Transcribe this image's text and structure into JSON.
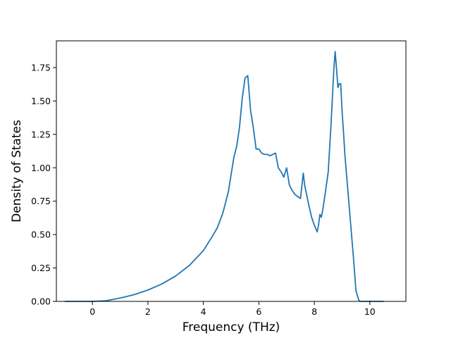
{
  "chart_data": {
    "type": "line",
    "title": "",
    "xlabel": "Frequency (THz)",
    "ylabel": "Density of States",
    "xlim": [
      -1.3,
      11.3
    ],
    "ylim": [
      0.0,
      1.95
    ],
    "xticks": [
      0,
      2,
      4,
      6,
      8,
      10
    ],
    "xtick_labels": [
      "0",
      "2",
      "4",
      "6",
      "8",
      "10"
    ],
    "yticks": [
      0.0,
      0.25,
      0.5,
      0.75,
      1.0,
      1.25,
      1.5,
      1.75
    ],
    "ytick_labels": [
      "0.00",
      "0.25",
      "0.50",
      "0.75",
      "1.00",
      "1.25",
      "1.50",
      "1.75"
    ],
    "grid": false,
    "legend": "none",
    "series": [
      {
        "color": "#1f77b4",
        "x": [
          -1.0,
          0.0,
          0.5,
          1.0,
          1.5,
          2.0,
          2.5,
          3.0,
          3.5,
          4.0,
          4.3,
          4.5,
          4.7,
          4.9,
          5.0,
          5.1,
          5.2,
          5.3,
          5.4,
          5.5,
          5.6,
          5.7,
          5.8,
          5.9,
          6.0,
          6.1,
          6.2,
          6.3,
          6.4,
          6.5,
          6.6,
          6.7,
          6.8,
          6.9,
          7.0,
          7.1,
          7.2,
          7.3,
          7.5,
          7.6,
          7.65,
          7.7,
          7.8,
          7.9,
          8.0,
          8.1,
          8.15,
          8.2,
          8.25,
          8.3,
          8.4,
          8.5,
          8.6,
          8.7,
          8.75,
          8.8,
          8.85,
          8.9,
          8.95,
          9.0,
          9.05,
          9.1,
          9.2,
          9.3,
          9.4,
          9.5,
          9.6,
          9.65,
          9.7,
          9.8,
          10.0,
          10.5
        ],
        "y": [
          0.0,
          0.0,
          0.005,
          0.025,
          0.05,
          0.085,
          0.13,
          0.19,
          0.27,
          0.38,
          0.48,
          0.55,
          0.66,
          0.82,
          0.95,
          1.08,
          1.16,
          1.3,
          1.52,
          1.67,
          1.69,
          1.43,
          1.3,
          1.14,
          1.14,
          1.11,
          1.1,
          1.1,
          1.09,
          1.1,
          1.11,
          1.0,
          0.97,
          0.93,
          1.0,
          0.87,
          0.83,
          0.8,
          0.77,
          0.96,
          0.87,
          0.82,
          0.72,
          0.63,
          0.57,
          0.52,
          0.57,
          0.65,
          0.63,
          0.68,
          0.82,
          0.97,
          1.32,
          1.73,
          1.87,
          1.74,
          1.6,
          1.63,
          1.63,
          1.42,
          1.27,
          1.1,
          0.85,
          0.6,
          0.35,
          0.08,
          0.01,
          0.0,
          0.0,
          0.0,
          0.0,
          0.0
        ]
      }
    ]
  }
}
